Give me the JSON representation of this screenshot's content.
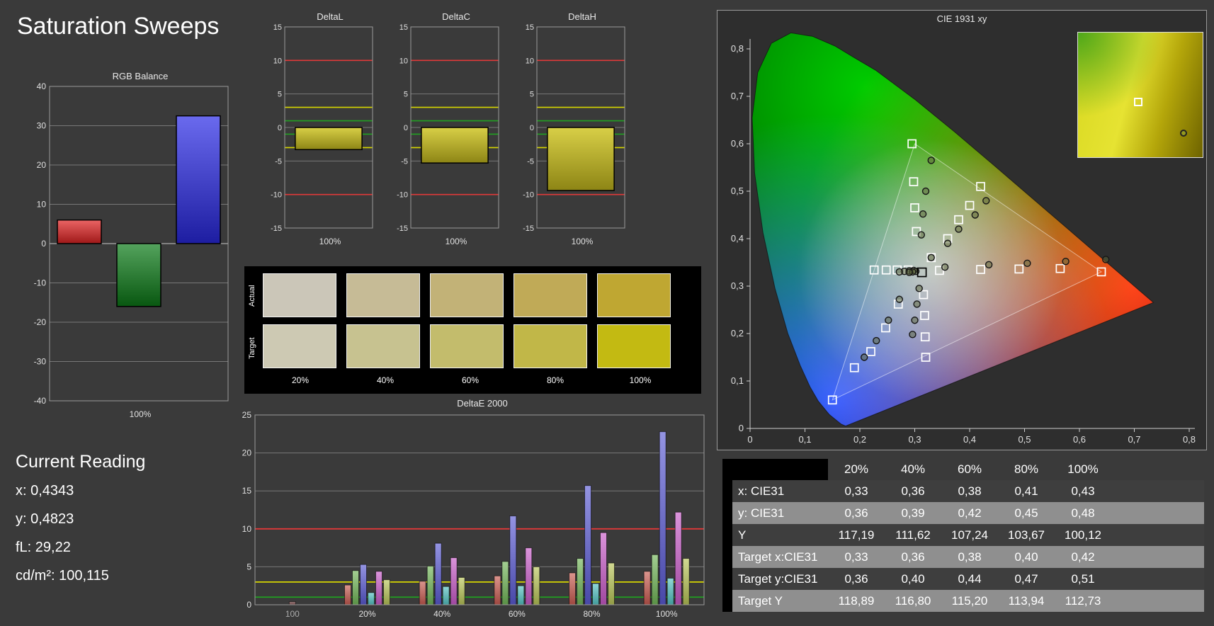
{
  "page": {
    "title": "Saturation Sweeps",
    "bg": "#3a3a3a"
  },
  "current_reading": {
    "title": "Current Reading",
    "lines": [
      "x: 0,4343",
      "y: 0,4823",
      "fL: 29,22",
      "cd/m²: 100,115"
    ]
  },
  "swatches": {
    "row_labels": [
      "Actual",
      "Target"
    ],
    "col_labels": [
      "20%",
      "40%",
      "60%",
      "80%",
      "100%"
    ],
    "actual_colors": [
      "#cbc6b8",
      "#c6bb96",
      "#c2b277",
      "#c0aa57",
      "#bfa732"
    ],
    "target_colors": [
      "#cdc9b3",
      "#c7c290",
      "#c3bc6c",
      "#c1b748",
      "#c3ba12"
    ]
  },
  "table": {
    "header": [
      "",
      "20%",
      "40%",
      "60%",
      "80%",
      "100%"
    ],
    "rows": [
      {
        "label": "x: CIE31",
        "values": [
          "0,33",
          "0,36",
          "0,38",
          "0,41",
          "0,43"
        ]
      },
      {
        "label": "y: CIE31",
        "values": [
          "0,36",
          "0,39",
          "0,42",
          "0,45",
          "0,48"
        ]
      },
      {
        "label": "Y",
        "values": [
          "117,19",
          "111,62",
          "107,24",
          "103,67",
          "100,12"
        ]
      },
      {
        "label": "Target x:CIE31",
        "values": [
          "0,33",
          "0,36",
          "0,38",
          "0,40",
          "0,42"
        ]
      },
      {
        "label": "Target y:CIE31",
        "values": [
          "0,36",
          "0,40",
          "0,44",
          "0,47",
          "0,51"
        ]
      },
      {
        "label": "Target Y",
        "values": [
          "118,89",
          "116,80",
          "115,20",
          "113,94",
          "112,73"
        ]
      }
    ]
  },
  "chart_data": [
    {
      "id": "rgb_balance",
      "type": "bar",
      "title": "RGB Balance",
      "categories": [
        "Red",
        "Green",
        "Blue"
      ],
      "values": [
        6,
        -16,
        32.5
      ],
      "colors": [
        "#e32222",
        "#0b7c17",
        "#2a2ae6"
      ],
      "xlabel": "100%",
      "ylim": [
        -40,
        40
      ],
      "ytick_step": 10
    },
    {
      "id": "deltaL",
      "type": "bar",
      "title": "DeltaL",
      "categories": [
        "100%"
      ],
      "values": [
        -3.3
      ],
      "bar_color": "#cfc41f",
      "xlabel": "100%",
      "ylim": [
        -15,
        15
      ],
      "ytick_step": 5,
      "limit_lines": {
        "red": 10,
        "yellow": 3,
        "green": 1
      }
    },
    {
      "id": "deltaC",
      "type": "bar",
      "title": "DeltaC",
      "categories": [
        "100%"
      ],
      "values": [
        -5.3
      ],
      "bar_color": "#cfc41f",
      "xlabel": "100%",
      "ylim": [
        -15,
        15
      ],
      "ytick_step": 5,
      "limit_lines": {
        "red": 10,
        "yellow": 3,
        "green": 1
      }
    },
    {
      "id": "deltaH",
      "type": "bar",
      "title": "DeltaH",
      "categories": [
        "100%"
      ],
      "values": [
        -9.4
      ],
      "bar_color": "#cfc41f",
      "xlabel": "100%",
      "ylim": [
        -15,
        15
      ],
      "ytick_step": 5,
      "limit_lines": {
        "red": 10,
        "yellow": 3,
        "green": 1
      }
    },
    {
      "id": "deltae2000",
      "type": "bar",
      "title": "DeltaE 2000",
      "ylim": [
        0,
        25
      ],
      "ytick_step": 5,
      "limit_lines": {
        "red": 10,
        "yellow": 3,
        "green": 1
      },
      "groups": [
        {
          "label": "100",
          "bars": [
            {
              "color": "#7a4a4a",
              "value": 0.4
            }
          ]
        },
        {
          "label": "20%",
          "bars": [
            {
              "color": "#c75a50",
              "value": 2.6
            },
            {
              "color": "#71b558",
              "value": 4.5
            },
            {
              "color": "#5a5ad2",
              "value": 5.3
            },
            {
              "color": "#52c2c2",
              "value": 1.6
            },
            {
              "color": "#c75ac7",
              "value": 4.4
            },
            {
              "color": "#b8c457",
              "value": 3.3
            }
          ]
        },
        {
          "label": "40%",
          "bars": [
            {
              "color": "#c75a50",
              "value": 3.1
            },
            {
              "color": "#71b558",
              "value": 5.1
            },
            {
              "color": "#5a5ad2",
              "value": 8.1
            },
            {
              "color": "#52c2c2",
              "value": 2.4
            },
            {
              "color": "#c75ac7",
              "value": 6.2
            },
            {
              "color": "#b8c457",
              "value": 3.6
            }
          ]
        },
        {
          "label": "60%",
          "bars": [
            {
              "color": "#c75a50",
              "value": 3.8
            },
            {
              "color": "#71b558",
              "value": 5.7
            },
            {
              "color": "#5a5ad2",
              "value": 11.7
            },
            {
              "color": "#52c2c2",
              "value": 2.5
            },
            {
              "color": "#c75ac7",
              "value": 7.5
            },
            {
              "color": "#b8c457",
              "value": 5.0
            }
          ]
        },
        {
          "label": "80%",
          "bars": [
            {
              "color": "#c75a50",
              "value": 4.2
            },
            {
              "color": "#71b558",
              "value": 6.1
            },
            {
              "color": "#5a5ad2",
              "value": 15.7
            },
            {
              "color": "#52c2c2",
              "value": 2.8
            },
            {
              "color": "#c75ac7",
              "value": 9.5
            },
            {
              "color": "#b8c457",
              "value": 5.5
            }
          ]
        },
        {
          "label": "100%",
          "bars": [
            {
              "color": "#c75a50",
              "value": 4.4
            },
            {
              "color": "#71b558",
              "value": 6.6
            },
            {
              "color": "#5a5ad2",
              "value": 22.8
            },
            {
              "color": "#52c2c2",
              "value": 3.5
            },
            {
              "color": "#c75ac7",
              "value": 12.2
            },
            {
              "color": "#b8c457",
              "value": 6.1
            }
          ]
        }
      ]
    },
    {
      "id": "cie1931",
      "type": "scatter",
      "title": "CIE 1931 xy",
      "xlim": [
        0,
        0.8
      ],
      "ylim": [
        0,
        0.8
      ],
      "xtick_labels": [
        "0",
        "0,1",
        "0,2",
        "0,3",
        "0,4",
        "0,5",
        "0,6",
        "0,7",
        "0,8"
      ],
      "ytick_labels": [
        "0",
        "0,1",
        "0,2",
        "0,3",
        "0,4",
        "0,5",
        "0,6",
        "0,7",
        "0,8"
      ],
      "gamut_triangle": [
        [
          0.64,
          0.33
        ],
        [
          0.3,
          0.6
        ],
        [
          0.15,
          0.06
        ]
      ],
      "white_point": [
        0.313,
        0.329
      ],
      "targets": {
        "red": [
          [
            0.345,
            0.333
          ],
          [
            0.42,
            0.335
          ],
          [
            0.49,
            0.336
          ],
          [
            0.565,
            0.337
          ],
          [
            0.64,
            0.33
          ]
        ],
        "green": [
          [
            0.303,
            0.415
          ],
          [
            0.3,
            0.465
          ],
          [
            0.298,
            0.52
          ],
          [
            0.295,
            0.6
          ]
        ],
        "blue": [
          [
            0.27,
            0.262
          ],
          [
            0.247,
            0.212
          ],
          [
            0.22,
            0.162
          ],
          [
            0.19,
            0.128
          ],
          [
            0.15,
            0.06
          ]
        ],
        "yellow": [
          [
            0.33,
            0.36
          ],
          [
            0.36,
            0.4
          ],
          [
            0.38,
            0.44
          ],
          [
            0.4,
            0.47
          ],
          [
            0.42,
            0.51
          ]
        ],
        "magenta": [
          [
            0.316,
            0.282
          ],
          [
            0.318,
            0.238
          ],
          [
            0.319,
            0.193
          ],
          [
            0.32,
            0.15
          ]
        ],
        "cyan": [
          [
            0.288,
            0.334
          ],
          [
            0.268,
            0.334
          ],
          [
            0.248,
            0.334
          ],
          [
            0.226,
            0.334
          ]
        ]
      },
      "measurements": {
        "red": [
          [
            0.355,
            0.34
          ],
          [
            0.435,
            0.345
          ],
          [
            0.505,
            0.348
          ],
          [
            0.575,
            0.352
          ],
          [
            0.648,
            0.356
          ]
        ],
        "green": [
          [
            0.312,
            0.408
          ],
          [
            0.315,
            0.452
          ],
          [
            0.32,
            0.5
          ],
          [
            0.33,
            0.565
          ]
        ],
        "blue": [
          [
            0.272,
            0.272
          ],
          [
            0.252,
            0.228
          ],
          [
            0.23,
            0.185
          ],
          [
            0.208,
            0.15
          ]
        ],
        "yellow": [
          [
            0.33,
            0.36
          ],
          [
            0.36,
            0.39
          ],
          [
            0.38,
            0.42
          ],
          [
            0.41,
            0.45
          ],
          [
            0.43,
            0.48
          ]
        ],
        "magenta": [
          [
            0.308,
            0.295
          ],
          [
            0.304,
            0.262
          ],
          [
            0.3,
            0.228
          ],
          [
            0.296,
            0.198
          ]
        ],
        "cyan": [
          [
            0.298,
            0.333
          ],
          [
            0.29,
            0.332
          ],
          [
            0.281,
            0.331
          ],
          [
            0.272,
            0.33
          ]
        ],
        "center": [
          [
            0.302,
            0.331
          ],
          [
            0.296,
            0.33
          ],
          [
            0.29,
            0.329
          ]
        ]
      },
      "inset": {
        "square": [
          0.45,
          0.52
        ],
        "circle": [
          0.82,
          0.78
        ]
      }
    }
  ]
}
